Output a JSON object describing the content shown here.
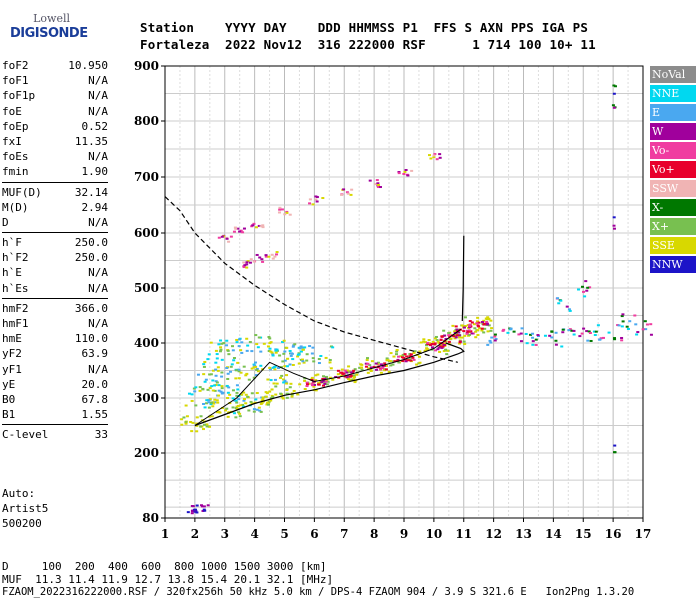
{
  "logo": {
    "top": "Lowell",
    "main": "DIGISONDE"
  },
  "header": {
    "line1": "Station    YYYY DAY    DDD HHMMSS P1  FFS S AXN PPS IGA PS",
    "line2": "Fortaleza  2022 Nov12  316 222000 RSF      1 714 100 10+ 11"
  },
  "params": [
    {
      "k": "foF2",
      "v": "10.950"
    },
    {
      "k": "foF1",
      "v": "N/A"
    },
    {
      "k": "foF1p",
      "v": "N/A"
    },
    {
      "k": "foE",
      "v": "N/A"
    },
    {
      "k": "foEp",
      "v": "0.52"
    },
    {
      "k": "fxI",
      "v": "11.35"
    },
    {
      "k": "foEs",
      "v": "N/A"
    },
    {
      "k": "fmin",
      "v": "1.90"
    },
    {
      "k": "MUF(D)",
      "v": "32.14"
    },
    {
      "k": "M(D)",
      "v": "2.94"
    },
    {
      "k": "D",
      "v": "N/A"
    },
    {
      "k": "h`F",
      "v": "250.0"
    },
    {
      "k": "h`F2",
      "v": "250.0"
    },
    {
      "k": "h`E",
      "v": "N/A"
    },
    {
      "k": "h`Es",
      "v": "N/A"
    },
    {
      "k": "hmF2",
      "v": "366.0"
    },
    {
      "k": "hmF1",
      "v": "N/A"
    },
    {
      "k": "hmE",
      "v": "110.0"
    },
    {
      "k": "yF2",
      "v": "63.9"
    },
    {
      "k": "yF1",
      "v": "N/A"
    },
    {
      "k": "yE",
      "v": "20.0"
    },
    {
      "k": "B0",
      "v": "67.8"
    },
    {
      "k": "B1",
      "v": "1.55"
    },
    {
      "k": "C-level",
      "v": "33"
    }
  ],
  "auto": {
    "line1": "Auto:",
    "line2": "Artist5",
    "line3": "500200"
  },
  "footer": {
    "d_line": "D     100  200  400  600  800 1000 1500 3000 [km]",
    "muf_line": "MUF  11.3 11.4 11.9 12.7 13.8 15.4 20.1 32.1 [MHz]",
    "file_line": "FZAOM_2022316222000.RSF / 320fx256h 50 kHz 5.0 km / DPS-4 FZAOM 904 / 3.9 S 321.6 E   Ion2Png 1.3.20"
  },
  "legend": [
    {
      "label": "NoVal",
      "color": "#8c8c8c",
      "text": "#ffffff"
    },
    {
      "label": "NNE",
      "color": "#00d8f0",
      "text": "#ffffff"
    },
    {
      "label": "E",
      "color": "#4aa8f0",
      "text": "#ffffff"
    },
    {
      "label": "W",
      "color": "#a0009c",
      "text": "#ffffff"
    },
    {
      "label": "Vo-",
      "color": "#f03ca0",
      "text": "#ffffff"
    },
    {
      "label": "Vo+",
      "color": "#e8002c",
      "text": "#ffffff"
    },
    {
      "label": "SSW",
      "color": "#f0b4b4",
      "text": "#ffffff"
    },
    {
      "label": "X-",
      "color": "#007800",
      "text": "#ffffff"
    },
    {
      "label": "X+",
      "color": "#78c050",
      "text": "#ffffff"
    },
    {
      "label": "SSE",
      "color": "#d8d800",
      "text": "#ffffff"
    },
    {
      "label": "NNW",
      "color": "#1c14c8",
      "text": "#ffffff"
    }
  ],
  "chart_data": {
    "type": "scatter",
    "title": "",
    "xlabel": "",
    "ylabel": "",
    "xlim": [
      1,
      17
    ],
    "ylim": [
      80,
      900
    ],
    "x_ticks": [
      "1",
      "2",
      "3",
      "4",
      "5",
      "6",
      "7",
      "8",
      "9",
      "10",
      "11",
      "12",
      "13",
      "14",
      "15",
      "16",
      "17"
    ],
    "y_ticks": [
      "80",
      "200",
      "300",
      "400",
      "500",
      "600",
      "700",
      "800",
      "900"
    ],
    "y_tick_values": [
      80,
      200,
      300,
      400,
      500,
      600,
      700,
      800,
      900
    ],
    "series": [
      {
        "key": "f2_trace",
        "points": [
          [
            2,
            255
          ],
          [
            3,
            280
          ],
          [
            4,
            300
          ],
          [
            5,
            315
          ],
          [
            6,
            330
          ],
          [
            7,
            345
          ],
          [
            8,
            360
          ],
          [
            9,
            375
          ],
          [
            10,
            395
          ],
          [
            10.5,
            410
          ],
          [
            11,
            425
          ],
          [
            11.4,
            435
          ]
        ]
      },
      {
        "key": "upper_cloud",
        "points": [
          [
            3,
            395
          ],
          [
            4,
            400
          ],
          [
            5,
            395
          ],
          [
            6,
            380
          ],
          [
            3.5,
            350
          ],
          [
            4.5,
            345
          ],
          [
            2.5,
            330
          ],
          [
            3,
            310
          ],
          [
            2.2,
            300
          ],
          [
            3.8,
            290
          ],
          [
            5,
            370
          ],
          [
            2.8,
            360
          ]
        ]
      },
      {
        "key": "multi_hop",
        "points": [
          [
            3,
            590
          ],
          [
            3.5,
            605
          ],
          [
            4,
            615
          ],
          [
            5,
            640
          ],
          [
            6,
            660
          ],
          [
            7,
            675
          ],
          [
            8,
            690
          ],
          [
            9,
            710
          ],
          [
            10,
            740
          ],
          [
            3.5,
            545
          ],
          [
            4,
            555
          ],
          [
            4.5,
            560
          ]
        ]
      },
      {
        "key": "high_freq",
        "points": [
          [
            12,
            410
          ],
          [
            12.5,
            425
          ],
          [
            13,
            415
          ],
          [
            13.5,
            405
          ],
          [
            14,
            410
          ],
          [
            14.5,
            430
          ],
          [
            15,
            415
          ],
          [
            15.5,
            420
          ],
          [
            16,
            420
          ],
          [
            16.5,
            440
          ],
          [
            17,
            430
          ],
          [
            14.3,
            470
          ],
          [
            15,
            500
          ]
        ]
      }
    ],
    "profile_curve": [
      [
        1,
        665
      ],
      [
        1.5,
        640
      ],
      [
        2,
        600
      ],
      [
        3,
        545
      ],
      [
        4,
        505
      ],
      [
        5,
        470
      ],
      [
        6,
        440
      ],
      [
        7,
        420
      ],
      [
        8,
        405
      ],
      [
        9,
        390
      ],
      [
        10,
        375
      ],
      [
        10.8,
        365
      ]
    ],
    "model_curve": [
      [
        2,
        250
      ],
      [
        3,
        270
      ],
      [
        4,
        290
      ],
      [
        5,
        305
      ],
      [
        6,
        315
      ],
      [
        7,
        328
      ],
      [
        8,
        340
      ],
      [
        9,
        350
      ],
      [
        10,
        365
      ],
      [
        10.8,
        380
      ],
      [
        11,
        385
      ],
      [
        10.9,
        390
      ],
      [
        10.4,
        400
      ]
    ]
  }
}
